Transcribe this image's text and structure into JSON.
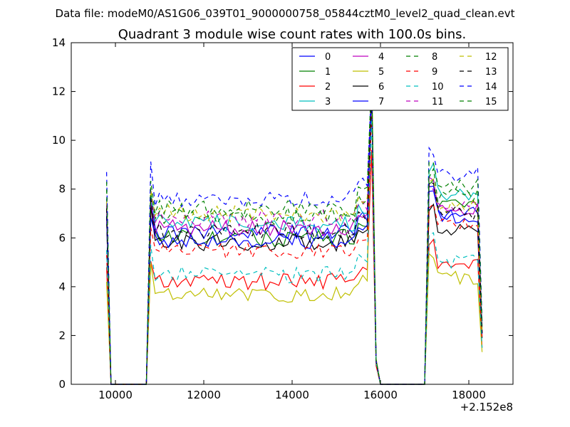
{
  "header": {
    "datafile": "Data file: modeM0/AS1G06_039T01_9000000758_05844cztM0_level2_quad_clean.evt"
  },
  "chart_data": {
    "type": "line",
    "title": "Quadrant 3 module wise count rates with 100.0s bins.",
    "xlabel": "",
    "ylabel": "",
    "offset_label": "+2.152e8",
    "xlim": [
      9000,
      19000
    ],
    "ylim": [
      0,
      14
    ],
    "x_ticks": [
      10000,
      12000,
      14000,
      16000,
      18000
    ],
    "x_tick_labels": [
      "10000",
      "12000",
      "14000",
      "16000",
      "18000"
    ],
    "y_ticks": [
      0,
      2,
      4,
      6,
      8,
      10,
      12,
      14
    ],
    "y_tick_labels": [
      "0",
      "2",
      "4",
      "6",
      "8",
      "10",
      "12",
      "14"
    ],
    "grid": false,
    "legend_position": "top-right",
    "legend_columns": 4,
    "segments": [
      {
        "start": 9800,
        "end": 9900,
        "shape": "decay"
      },
      {
        "start": 9900,
        "end": 10700,
        "shape": "zero"
      },
      {
        "start": 10700,
        "end": 15800,
        "shape": "plateau"
      },
      {
        "start": 15800,
        "end": 15900,
        "shape": "peak"
      },
      {
        "start": 15900,
        "end": 17000,
        "shape": "decay_zero"
      },
      {
        "start": 17000,
        "end": 18300,
        "shape": "plateau2"
      }
    ],
    "series": [
      {
        "name": "0",
        "color": "#0000ff",
        "dash": "solid",
        "level": 6.2,
        "start_level": 7.6,
        "peak": 12.2,
        "level2": 7.0
      },
      {
        "name": "1",
        "color": "#008000",
        "dash": "solid",
        "level": 6.0,
        "start_level": 7.0,
        "peak": 12.9,
        "level2": 7.4
      },
      {
        "name": "2",
        "color": "#ff0000",
        "dash": "solid",
        "level": 4.2,
        "start_level": 4.8,
        "peak": 9.6,
        "level2": 5.0
      },
      {
        "name": "3",
        "color": "#00bfbf",
        "dash": "solid",
        "level": 6.6,
        "start_level": 7.2,
        "peak": 12.4,
        "level2": 7.8
      },
      {
        "name": "4",
        "color": "#bf00bf",
        "dash": "solid",
        "level": 6.4,
        "start_level": 7.3,
        "peak": 12.6,
        "level2": 7.2
      },
      {
        "name": "5",
        "color": "#bfbf00",
        "dash": "solid",
        "level": 3.7,
        "start_level": 4.2,
        "peak": 13.2,
        "level2": 4.4
      },
      {
        "name": "6",
        "color": "#000000",
        "dash": "solid",
        "level": 5.8,
        "start_level": 6.8,
        "peak": 12.0,
        "level2": 6.3
      },
      {
        "name": "7",
        "color": "#0000ff",
        "dash": "solid",
        "level": 5.9,
        "start_level": 6.9,
        "peak": 12.1,
        "level2": 6.9
      },
      {
        "name": "8",
        "color": "#008000",
        "dash": "dashed",
        "level": 6.9,
        "start_level": 8.0,
        "peak": 12.3,
        "level2": 7.7
      },
      {
        "name": "9",
        "color": "#ff0000",
        "dash": "dashed",
        "level": 5.5,
        "start_level": 5.3,
        "peak": 11.0,
        "level2": 6.5
      },
      {
        "name": "10",
        "color": "#00bfbf",
        "dash": "dashed",
        "level": 4.5,
        "start_level": 5.5,
        "peak": 10.9,
        "level2": 5.0
      },
      {
        "name": "11",
        "color": "#bf00bf",
        "dash": "dashed",
        "level": 6.8,
        "start_level": 7.4,
        "peak": 12.2,
        "level2": 7.2
      },
      {
        "name": "12",
        "color": "#bfbf00",
        "dash": "dashed",
        "level": 7.0,
        "start_level": 7.5,
        "peak": 12.5,
        "level2": 7.3
      },
      {
        "name": "13",
        "color": "#000000",
        "dash": "dashed",
        "level": 6.3,
        "start_level": 7.2,
        "peak": 12.0,
        "level2": 7.0
      },
      {
        "name": "14",
        "color": "#0000ff",
        "dash": "dashed",
        "level": 7.6,
        "start_level": 8.7,
        "peak": 12.4,
        "level2": 8.6
      },
      {
        "name": "15",
        "color": "#008000",
        "dash": "dashed",
        "level": 7.2,
        "start_level": 8.3,
        "peak": 12.7,
        "level2": 8.1
      }
    ]
  }
}
